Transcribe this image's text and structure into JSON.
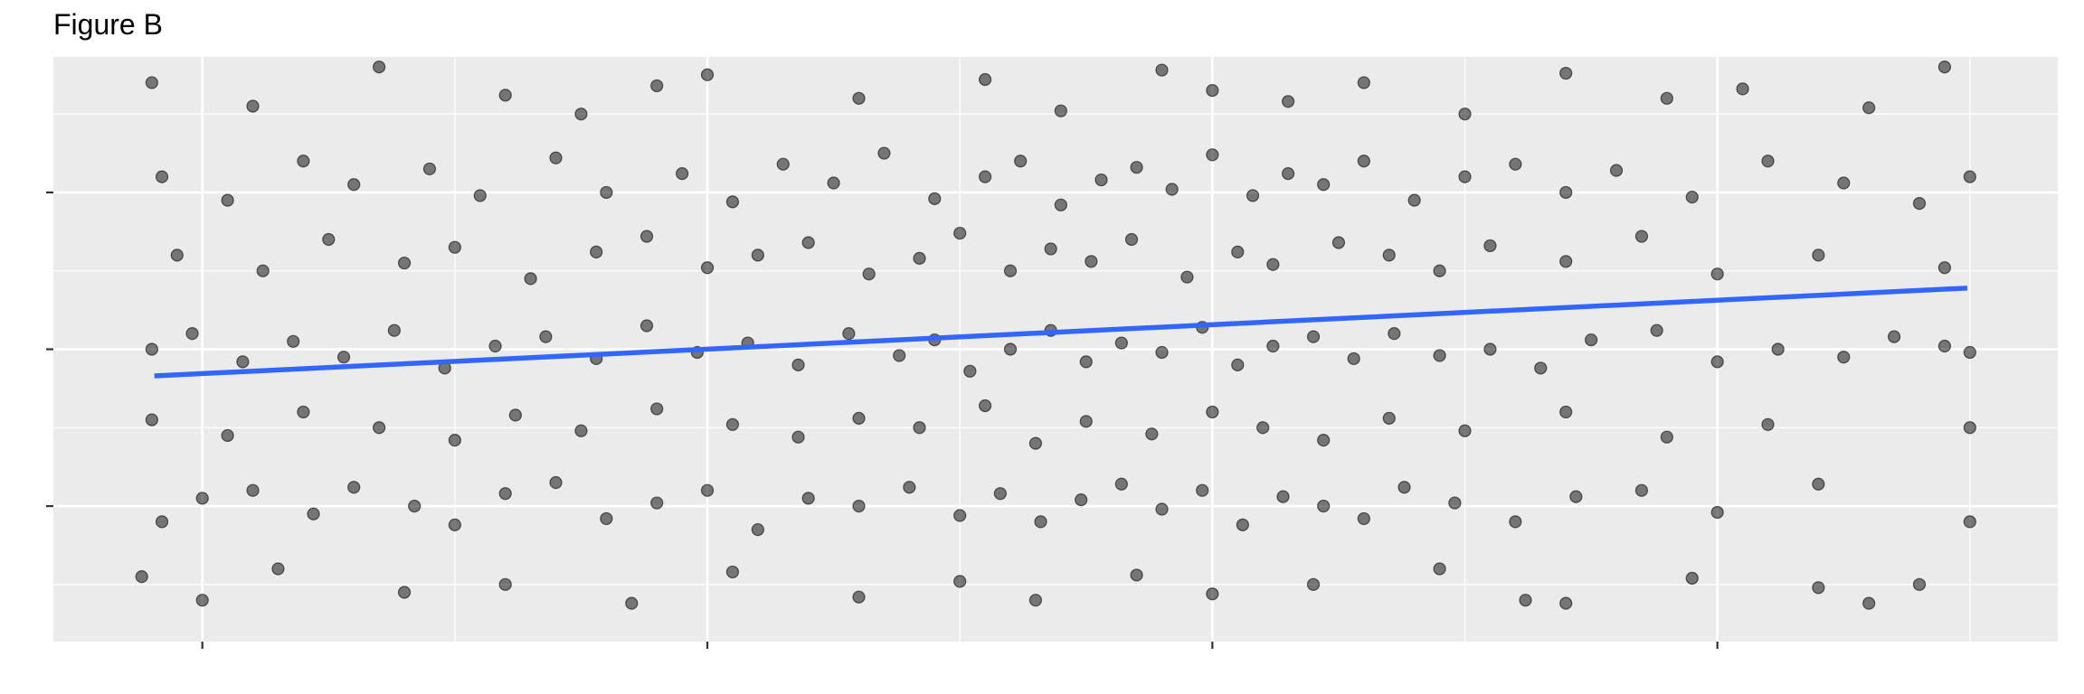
{
  "chart_data": {
    "type": "scatter",
    "title": "Figure B",
    "xlim": [
      -0.295,
      3.674
    ],
    "ylim": [
      -0.864,
      2.864
    ],
    "xticks": [
      0,
      1,
      2,
      3
    ],
    "yticks": [
      0,
      1,
      2
    ],
    "xminor": [
      0.5,
      1.5,
      2.5,
      3.5
    ],
    "yminor": [
      -0.5,
      0.5,
      1.5,
      2.5
    ],
    "grid": true,
    "color": "#000000",
    "series": [
      {
        "x": [
          -0.1,
          0.1,
          0.35,
          0.6,
          0.75,
          1.0,
          1.3,
          1.55,
          1.7,
          1.9,
          2.0,
          2.15,
          2.3,
          2.5,
          2.7,
          2.9,
          3.05,
          3.3,
          3.45,
          0.9,
          -0.08,
          0.05,
          0.2,
          0.3,
          0.45,
          0.55,
          0.7,
          0.8,
          0.95,
          1.05,
          1.15,
          1.25,
          1.35,
          1.45,
          1.55,
          1.62,
          1.7,
          1.78,
          1.85,
          1.92,
          2.0,
          2.08,
          2.15,
          2.22,
          2.3,
          2.4,
          2.5,
          2.6,
          2.7,
          2.8,
          2.95,
          3.1,
          3.25,
          3.4,
          3.5,
          -0.05,
          0.12,
          0.25,
          0.4,
          0.5,
          0.65,
          0.78,
          0.88,
          1.0,
          1.1,
          1.2,
          1.32,
          1.42,
          1.5,
          1.6,
          1.68,
          1.76,
          1.84,
          1.95,
          2.05,
          2.12,
          2.25,
          2.35,
          2.45,
          2.55,
          2.7,
          2.85,
          3.0,
          3.2,
          3.45,
          -0.1,
          -0.02,
          0.08,
          0.18,
          0.28,
          0.38,
          0.48,
          0.58,
          0.68,
          0.78,
          0.88,
          0.98,
          1.08,
          1.18,
          1.28,
          1.38,
          1.45,
          1.52,
          1.6,
          1.68,
          1.75,
          1.82,
          1.9,
          1.98,
          2.05,
          2.12,
          2.2,
          2.28,
          2.36,
          2.45,
          2.55,
          2.65,
          2.75,
          2.88,
          3.0,
          3.12,
          3.25,
          3.35,
          3.45,
          3.5,
          -0.1,
          0.05,
          0.2,
          0.35,
          0.5,
          0.62,
          0.75,
          0.9,
          1.05,
          1.18,
          1.3,
          1.42,
          1.55,
          1.65,
          1.75,
          1.88,
          2.0,
          2.1,
          2.22,
          2.35,
          2.5,
          2.7,
          2.9,
          3.1,
          3.5,
          -0.08,
          0.0,
          0.1,
          0.22,
          0.3,
          0.42,
          0.5,
          0.6,
          0.7,
          0.8,
          0.9,
          1.0,
          1.1,
          1.2,
          1.3,
          1.4,
          1.5,
          1.58,
          1.66,
          1.74,
          1.82,
          1.9,
          1.98,
          2.06,
          2.14,
          2.22,
          2.3,
          2.38,
          2.48,
          2.6,
          2.72,
          2.85,
          3.0,
          3.2,
          3.5,
          -0.12,
          0.0,
          0.15,
          0.4,
          0.6,
          0.85,
          1.05,
          1.3,
          1.5,
          1.65,
          1.85,
          2.0,
          2.2,
          2.45,
          2.62,
          2.7,
          2.95,
          3.2,
          3.3,
          3.4
        ],
        "values": [
          2.7,
          2.55,
          2.8,
          2.62,
          2.5,
          2.75,
          2.6,
          2.72,
          2.52,
          2.78,
          2.65,
          2.58,
          2.7,
          2.5,
          2.76,
          2.6,
          2.66,
          2.54,
          2.8,
          2.68,
          2.1,
          1.95,
          2.2,
          2.05,
          2.15,
          1.98,
          2.22,
          2.0,
          2.12,
          1.94,
          2.18,
          2.06,
          2.25,
          1.96,
          2.1,
          2.2,
          1.92,
          2.08,
          2.16,
          2.02,
          2.24,
          1.98,
          2.12,
          2.05,
          2.2,
          1.95,
          2.1,
          2.18,
          2.0,
          2.14,
          1.97,
          2.2,
          2.06,
          1.93,
          2.1,
          1.6,
          1.5,
          1.7,
          1.55,
          1.65,
          1.45,
          1.62,
          1.72,
          1.52,
          1.6,
          1.68,
          1.48,
          1.58,
          1.74,
          1.5,
          1.64,
          1.56,
          1.7,
          1.46,
          1.62,
          1.54,
          1.68,
          1.6,
          1.5,
          1.66,
          1.56,
          1.72,
          1.48,
          1.6,
          1.52,
          1.0,
          1.1,
          0.92,
          1.05,
          0.95,
          1.12,
          0.88,
          1.02,
          1.08,
          0.94,
          1.15,
          0.98,
          1.04,
          0.9,
          1.1,
          0.96,
          1.06,
          0.86,
          1.0,
          1.12,
          0.92,
          1.04,
          0.98,
          1.14,
          0.9,
          1.02,
          1.08,
          0.94,
          1.1,
          0.96,
          1.0,
          0.88,
          1.06,
          1.12,
          0.92,
          1.0,
          0.95,
          1.08,
          1.02,
          0.98,
          0.55,
          0.45,
          0.6,
          0.5,
          0.42,
          0.58,
          0.48,
          0.62,
          0.52,
          0.44,
          0.56,
          0.5,
          0.64,
          0.4,
          0.54,
          0.46,
          0.6,
          0.5,
          0.42,
          0.56,
          0.48,
          0.6,
          0.44,
          0.52,
          0.5,
          -0.1,
          0.05,
          0.1,
          -0.05,
          0.12,
          0.0,
          -0.12,
          0.08,
          0.15,
          -0.08,
          0.02,
          0.1,
          -0.15,
          0.05,
          0.0,
          0.12,
          -0.06,
          0.08,
          -0.1,
          0.04,
          0.14,
          -0.02,
          0.1,
          -0.12,
          0.06,
          0.0,
          -0.08,
          0.12,
          0.02,
          -0.1,
          0.06,
          0.1,
          -0.04,
          0.14,
          -0.1,
          -0.45,
          -0.6,
          -0.4,
          -0.55,
          -0.5,
          -0.62,
          -0.42,
          -0.58,
          -0.48,
          -0.6,
          -0.44,
          -0.56,
          -0.5,
          -0.4,
          -0.6,
          -0.62,
          -0.46,
          -0.52,
          -0.62,
          -0.5
        ]
      }
    ],
    "trend": {
      "color": "#3366ff",
      "x": [
        -0.095,
        3.495
      ],
      "values": [
        0.83,
        1.39
      ]
    }
  }
}
